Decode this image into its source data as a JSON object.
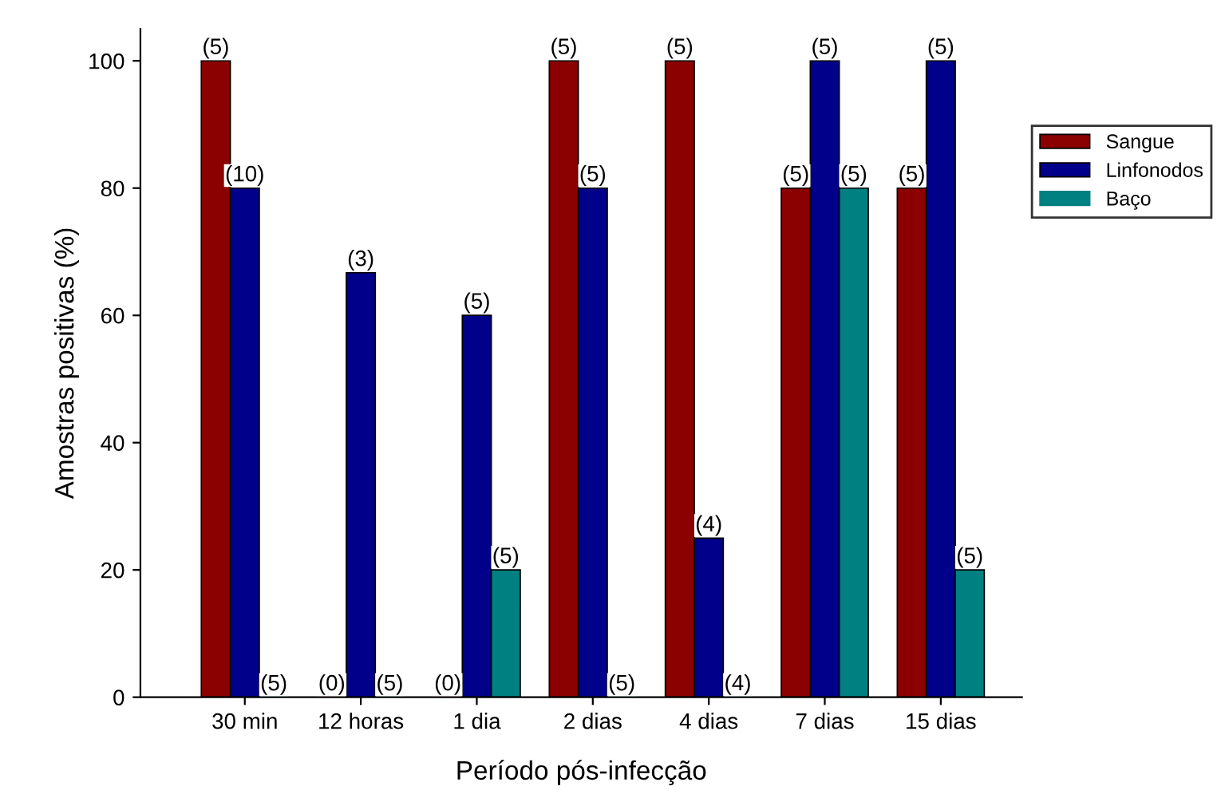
{
  "chart_data": {
    "type": "bar",
    "xlabel": "Período pós-infecção",
    "ylabel": "Amostras positivas (%)",
    "categories": [
      "30 min",
      "12 horas",
      "1 dia",
      "2 dias",
      "4 dias",
      "7 dias",
      "15 dias"
    ],
    "series": [
      {
        "name": "Sangue",
        "color": "#8b0000",
        "values": [
          100,
          0,
          0,
          100,
          100,
          80,
          80
        ]
      },
      {
        "name": "Linfonodos",
        "color": "#00008b",
        "values": [
          80,
          66.7,
          60,
          80,
          25,
          100,
          100
        ]
      },
      {
        "name": "Baço",
        "color": "#008080",
        "values": [
          0,
          0,
          20,
          0,
          0,
          80,
          20
        ]
      }
    ],
    "annotations": [
      "(5)",
      "(0)",
      "(0)",
      "(5)",
      "(5)",
      "(5)",
      "(5)",
      "(10)",
      "(3)",
      "(5)",
      "(5)",
      "(4)",
      "(5)",
      "(5)",
      "(5)",
      "(5)",
      "(5)",
      "(5)",
      "(4)",
      "(5)",
      "(5)"
    ],
    "ylim": [
      0,
      105
    ],
    "yticks": [
      0,
      20,
      40,
      60,
      80,
      100
    ],
    "grid": false,
    "legend": "right"
  }
}
